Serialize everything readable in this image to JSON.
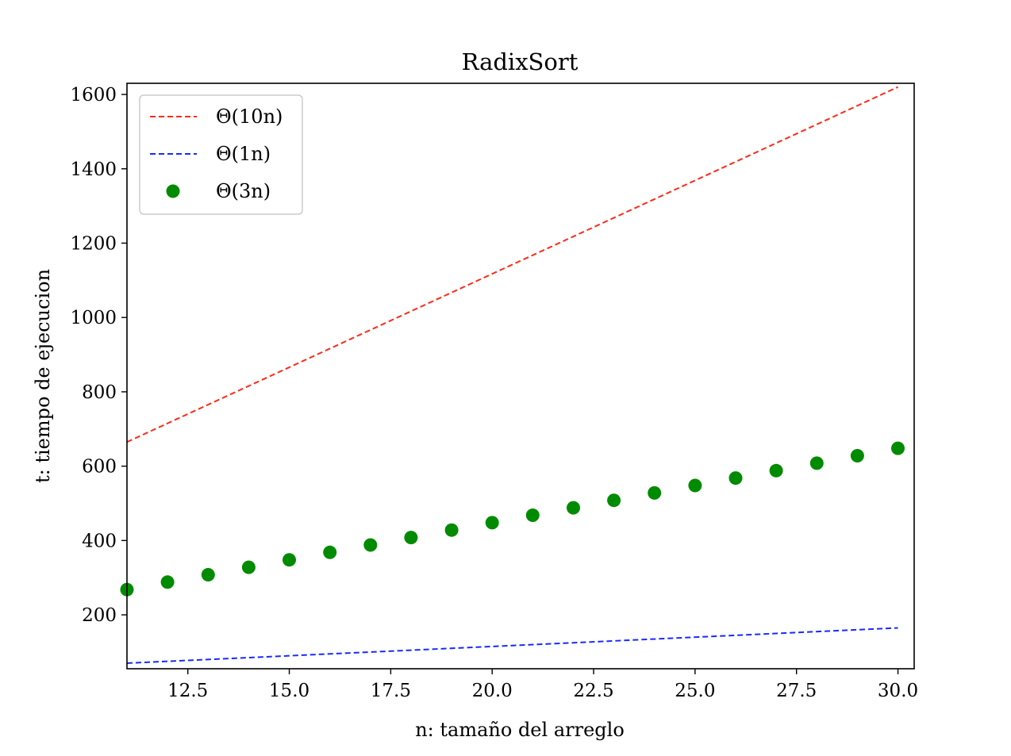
{
  "chart_data": {
    "type": "scatter",
    "title": "RadixSort",
    "xlabel": "n: tamaño del arreglo",
    "ylabel": "t: tiempo de ejecucion",
    "xlim": [
      11,
      30.4
    ],
    "ylim": [
      55,
      1630
    ],
    "xticks": [
      12.5,
      15.0,
      17.5,
      20.0,
      22.5,
      25.0,
      27.5,
      30.0
    ],
    "xtick_labels": [
      "12.5",
      "15.0",
      "17.5",
      "20.0",
      "22.5",
      "25.0",
      "27.5",
      "30.0"
    ],
    "yticks": [
      200,
      400,
      600,
      800,
      1000,
      1200,
      1400,
      1600
    ],
    "ytick_labels": [
      "200",
      "400",
      "600",
      "800",
      "1000",
      "1200",
      "1400",
      "1600"
    ],
    "legend_position": "top-left",
    "grid": false,
    "series": [
      {
        "name": "Θ(10n)",
        "kind": "dashed-line",
        "color": "#ff2a1a",
        "x": [
          11,
          30
        ],
        "y": [
          665,
          1620
        ]
      },
      {
        "name": "Θ(1n)",
        "kind": "dashed-line",
        "color": "#1a2aff",
        "x": [
          11,
          30
        ],
        "y": [
          70,
          165
        ]
      },
      {
        "name": "Θ(3n)",
        "kind": "scatter",
        "color": "#008b00",
        "x": [
          11,
          12,
          13,
          14,
          15,
          16,
          17,
          18,
          19,
          20,
          21,
          22,
          23,
          24,
          25,
          26,
          27,
          28,
          29,
          30
        ],
        "y": [
          268,
          288,
          308,
          328,
          348,
          368,
          388,
          408,
          428,
          448,
          468,
          488,
          508,
          528,
          548,
          568,
          588,
          608,
          628,
          648
        ]
      }
    ]
  }
}
